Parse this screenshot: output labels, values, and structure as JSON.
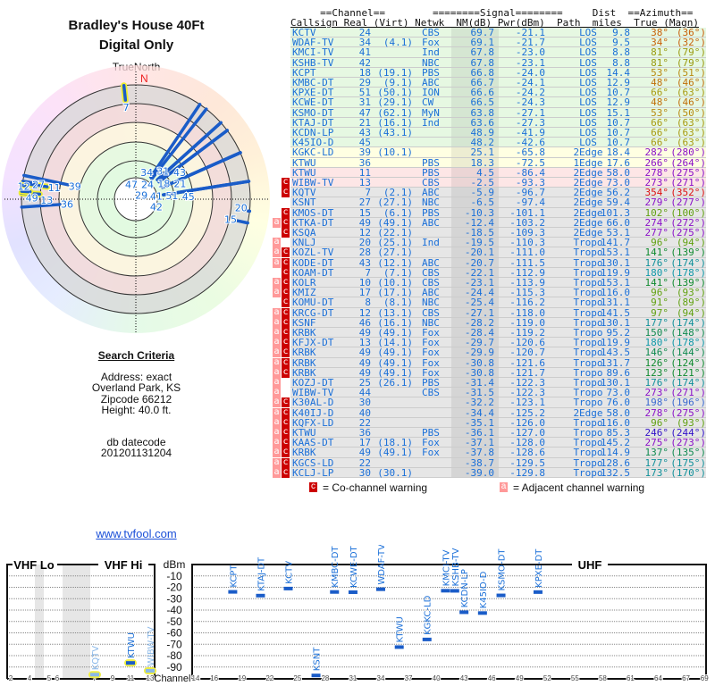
{
  "title_line1": "Bradley's House 40Ft",
  "title_line2": "Digital Only",
  "polar": {
    "north_label": "TrueNorth",
    "n": "N"
  },
  "criteria": {
    "heading": "Search Criteria",
    "address": "Address: exact",
    "city": "Overland Park, KS",
    "zip": "Zipcode 66212",
    "height": "Height: 40.0 ft.",
    "db_label": "db datecode",
    "db_value": "201201131204"
  },
  "link": "www.tvfool.com",
  "table": {
    "header1": "     ==Channel==        ========Signal========     Dist  ==Azimuth==",
    "header2": "Callsign Real (Virt) Netwk  NM(dB) Pwr(dBm)  Path  miles  True (Magn)",
    "rows": [
      {
        "w": "",
        "call": "KCTV",
        "real": "24",
        "virt": "",
        "net": "CBS",
        "nm": "69.7",
        "pwr": "-21.1",
        "path": "LOS",
        "dist": "9.8",
        "az": "38°",
        "mag": "(36°)",
        "color": "#c8600a",
        "hl": false
      },
      {
        "w": "",
        "call": "WDAF-TV",
        "real": "34",
        "virt": "(4.1)",
        "net": "Fox",
        "nm": "69.1",
        "pwr": "-21.7",
        "path": "LOS",
        "dist": "9.5",
        "az": "34°",
        "mag": "(32°)",
        "color": "#c8600a",
        "hl": false
      },
      {
        "w": "",
        "call": "KMCI-TV",
        "real": "41",
        "virt": "",
        "net": "Ind",
        "nm": "67.8",
        "pwr": "-23.0",
        "path": "LOS",
        "dist": "8.8",
        "az": "81°",
        "mag": "(79°)",
        "color": "#9a9a10",
        "hl": false
      },
      {
        "w": "",
        "call": "KSHB-TV",
        "real": "42",
        "virt": "",
        "net": "NBC",
        "nm": "67.8",
        "pwr": "-23.1",
        "path": "LOS",
        "dist": "8.8",
        "az": "81°",
        "mag": "(79°)",
        "color": "#9a9a10",
        "hl": false
      },
      {
        "w": "",
        "call": "KCPT",
        "real": "18",
        "virt": "(19.1)",
        "net": "PBS",
        "nm": "66.8",
        "pwr": "-24.0",
        "path": "LOS",
        "dist": "14.4",
        "az": "53°",
        "mag": "(51°)",
        "color": "#b88a10",
        "hl": false
      },
      {
        "w": "",
        "call": "KMBC-DT",
        "real": "29",
        "virt": "(9.1)",
        "net": "ABC",
        "nm": "66.7",
        "pwr": "-24.1",
        "path": "LOS",
        "dist": "12.9",
        "az": "48°",
        "mag": "(46°)",
        "color": "#c0700a",
        "hl": false
      },
      {
        "w": "",
        "call": "KPXE-DT",
        "real": "51",
        "virt": "(50.1)",
        "net": "ION",
        "nm": "66.6",
        "pwr": "-24.2",
        "path": "LOS",
        "dist": "10.7",
        "az": "66°",
        "mag": "(63°)",
        "color": "#a89a10",
        "hl": false
      },
      {
        "w": "",
        "call": "KCWE-DT",
        "real": "31",
        "virt": "(29.1)",
        "net": "CW",
        "nm": "66.5",
        "pwr": "-24.3",
        "path": "LOS",
        "dist": "12.9",
        "az": "48°",
        "mag": "(46°)",
        "color": "#c0700a",
        "hl": false
      },
      {
        "w": "",
        "call": "KSMO-DT",
        "real": "47",
        "virt": "(62.1)",
        "net": "MyN",
        "nm": "63.8",
        "pwr": "-27.1",
        "path": "LOS",
        "dist": "15.1",
        "az": "53°",
        "mag": "(50°)",
        "color": "#b88a10",
        "hl": false
      },
      {
        "w": "",
        "call": "KTAJ-DT",
        "real": "21",
        "virt": "(16.1)",
        "net": "Ind",
        "nm": "63.6",
        "pwr": "-27.3",
        "path": "LOS",
        "dist": "10.7",
        "az": "66°",
        "mag": "(63°)",
        "color": "#a89a10",
        "hl": false
      },
      {
        "w": "",
        "call": "KCDN-LP",
        "real": "43",
        "virt": "(43.1)",
        "net": "",
        "nm": "48.9",
        "pwr": "-41.9",
        "path": "LOS",
        "dist": "10.7",
        "az": "66°",
        "mag": "(63°)",
        "color": "#a89a10",
        "hl": false
      },
      {
        "w": "",
        "call": "K45IO-D",
        "real": "45",
        "virt": "",
        "net": "",
        "nm": "48.2",
        "pwr": "-42.6",
        "path": "LOS",
        "dist": "10.7",
        "az": "66°",
        "mag": "(63°)",
        "color": "#a89a10",
        "hl": false
      },
      {
        "w": "",
        "call": "KGKC-LD",
        "real": "39",
        "virt": "(10.1)",
        "net": "",
        "nm": "25.1",
        "pwr": "-65.8",
        "path": "2Edge",
        "dist": "18.4",
        "az": "282°",
        "mag": "(280°)",
        "color": "#8a10c8",
        "hl": false,
        "bg": "1Edge"
      },
      {
        "w": "",
        "call": "KTWU",
        "real": "36",
        "virt": "",
        "net": "PBS",
        "nm": "18.3",
        "pwr": "-72.5",
        "path": "1Edge",
        "dist": "17.6",
        "az": "266°",
        "mag": "(264°)",
        "color": "#8a10c8",
        "hl": false
      },
      {
        "w": "",
        "call": "KTWU",
        "real": "11",
        "virt": "",
        "net": "PBS",
        "nm": "4.5",
        "pwr": "-86.4",
        "path": "2Edge",
        "dist": "58.0",
        "az": "278°",
        "mag": "(275°)",
        "color": "#8a10c8",
        "hl": true
      },
      {
        "w": "c",
        "call": "WIBW-TV",
        "real": "13",
        "virt": "",
        "net": "CBS",
        "nm": "-2.5",
        "pwr": "-93.3",
        "path": "2Edge",
        "dist": "73.0",
        "az": "273°",
        "mag": "(271°)",
        "color": "#8a10c8",
        "hl": true
      },
      {
        "w": "c",
        "call": "KQTV",
        "real": "7",
        "virt": "(2.1)",
        "net": "ABC",
        "nm": "-5.9",
        "pwr": "-96.7",
        "path": "2Edge",
        "dist": "56.2",
        "az": "354°",
        "mag": "(352°)",
        "color": "#dd1010",
        "hl": true,
        "bg": "gray"
      },
      {
        "w": "",
        "call": "KSNT",
        "real": "27",
        "virt": "(27.1)",
        "net": "NBC",
        "nm": "-6.5",
        "pwr": "-97.4",
        "path": "2Edge",
        "dist": "59.4",
        "az": "279°",
        "mag": "(277°)",
        "color": "#8a10c8",
        "hl": false,
        "bg": "gray"
      },
      {
        "w": "c",
        "call": "KMOS-DT",
        "real": "15",
        "virt": "(6.1)",
        "net": "PBS",
        "nm": "-10.3",
        "pwr": "-101.1",
        "path": "2Edge",
        "dist": "101.3",
        "az": "102°",
        "mag": "(100°)",
        "color": "#60a010",
        "hl": false,
        "bg": "gray"
      },
      {
        "w": "ac",
        "call": "KTKA-DT",
        "real": "49",
        "virt": "(49.1)",
        "net": "ABC",
        "nm": "-12.4",
        "pwr": "-103.2",
        "path": "2Edge",
        "dist": "66.0",
        "az": "274°",
        "mag": "(272°)",
        "color": "#8a10c8",
        "hl": true,
        "bg": "gray"
      },
      {
        "w": "c",
        "call": "KSQA",
        "real": "12",
        "virt": "(22.1)",
        "net": "",
        "nm": "-18.5",
        "pwr": "-109.3",
        "path": "2Edge",
        "dist": "53.1",
        "az": "277°",
        "mag": "(275°)",
        "color": "#8a10c8",
        "hl": true,
        "bg": "gray"
      },
      {
        "w": "a",
        "call": "KNLJ",
        "real": "20",
        "virt": "(25.1)",
        "net": "Ind",
        "nm": "-19.5",
        "pwr": "-110.3",
        "path": "Tropo",
        "dist": "141.7",
        "az": "96°",
        "mag": "(94°)",
        "color": "#60a010",
        "hl": false
      },
      {
        "w": "ac",
        "call": "KOZL-TV",
        "real": "28",
        "virt": "(27.1)",
        "net": "",
        "nm": "-20.1",
        "pwr": "-111.0",
        "path": "Tropo",
        "dist": "153.1",
        "az": "141°",
        "mag": "(139°)",
        "color": "#108a30",
        "hl": false
      },
      {
        "w": "ac",
        "call": "KODE-DT",
        "real": "43",
        "virt": "(12.1)",
        "net": "ABC",
        "nm": "-20.7",
        "pwr": "-111.5",
        "path": "Tropo",
        "dist": "130.1",
        "az": "176°",
        "mag": "(174°)",
        "color": "#10909a",
        "hl": false
      },
      {
        "w": "c",
        "call": "KOAM-DT",
        "real": "7",
        "virt": "(7.1)",
        "net": "CBS",
        "nm": "-22.1",
        "pwr": "-112.9",
        "path": "Tropo",
        "dist": "119.9",
        "az": "180°",
        "mag": "(178°)",
        "color": "#1098a8",
        "hl": false
      },
      {
        "w": "ac",
        "call": "KOLR",
        "real": "10",
        "virt": "(10.1)",
        "net": "CBS",
        "nm": "-23.1",
        "pwr": "-113.9",
        "path": "Tropo",
        "dist": "153.1",
        "az": "141°",
        "mag": "(139°)",
        "color": "#108a30",
        "hl": false
      },
      {
        "w": "ac",
        "call": "KMIZ",
        "real": "17",
        "virt": "(17.1)",
        "net": "ABC",
        "nm": "-24.4",
        "pwr": "-115.3",
        "path": "Tropo",
        "dist": "116.0",
        "az": "96°",
        "mag": "(93°)",
        "color": "#60a010",
        "hl": false
      },
      {
        "w": "c",
        "call": "KOMU-DT",
        "real": "8",
        "virt": "(8.1)",
        "net": "NBC",
        "nm": "-25.4",
        "pwr": "-116.2",
        "path": "Tropo",
        "dist": "131.1",
        "az": "91°",
        "mag": "(89°)",
        "color": "#60a010",
        "hl": false
      },
      {
        "w": "ac",
        "call": "KRCG-DT",
        "real": "12",
        "virt": "(13.1)",
        "net": "CBS",
        "nm": "-27.1",
        "pwr": "-118.0",
        "path": "Tropo",
        "dist": "141.5",
        "az": "97°",
        "mag": "(94°)",
        "color": "#60a010",
        "hl": false
      },
      {
        "w": "ac",
        "call": "KSNF",
        "real": "46",
        "virt": "(16.1)",
        "net": "NBC",
        "nm": "-28.2",
        "pwr": "-119.0",
        "path": "Tropo",
        "dist": "130.1",
        "az": "177°",
        "mag": "(174°)",
        "color": "#10909a",
        "hl": false
      },
      {
        "w": "ac",
        "call": "KRBK",
        "real": "49",
        "virt": "(49.1)",
        "net": "Fox",
        "nm": "-28.4",
        "pwr": "-119.2",
        "path": "Tropo",
        "dist": "95.2",
        "az": "150°",
        "mag": "(148°)",
        "color": "#108a50",
        "hl": false
      },
      {
        "w": "ac",
        "call": "KFJX-DT",
        "real": "13",
        "virt": "(14.1)",
        "net": "Fox",
        "nm": "-29.7",
        "pwr": "-120.6",
        "path": "Tropo",
        "dist": "119.9",
        "az": "180°",
        "mag": "(178°)",
        "color": "#1098a8",
        "hl": false
      },
      {
        "w": "ac",
        "call": "KRBK",
        "real": "49",
        "virt": "(49.1)",
        "net": "Fox",
        "nm": "-29.9",
        "pwr": "-120.7",
        "path": "Tropo",
        "dist": "143.5",
        "az": "146°",
        "mag": "(144°)",
        "color": "#108a50",
        "hl": false
      },
      {
        "w": "ac",
        "call": "KRBK",
        "real": "49",
        "virt": "(49.1)",
        "net": "Fox",
        "nm": "-30.8",
        "pwr": "-121.6",
        "path": "Tropo",
        "dist": "131.7",
        "az": "126°",
        "mag": "(124°)",
        "color": "#108a30",
        "hl": false
      },
      {
        "w": "ac",
        "call": "KRBK",
        "real": "49",
        "virt": "(49.1)",
        "net": "Fox",
        "nm": "-30.8",
        "pwr": "-121.7",
        "path": "Tropo",
        "dist": "89.6",
        "az": "123°",
        "mag": "(121°)",
        "color": "#108a30",
        "hl": false
      },
      {
        "w": "a",
        "call": "KOZJ-DT",
        "real": "25",
        "virt": "(26.1)",
        "net": "PBS",
        "nm": "-31.4",
        "pwr": "-122.3",
        "path": "Tropo",
        "dist": "130.1",
        "az": "176°",
        "mag": "(174°)",
        "color": "#10909a",
        "hl": false
      },
      {
        "w": "a",
        "call": "WIBW-TV",
        "real": "44",
        "virt": "",
        "net": "CBS",
        "nm": "-31.5",
        "pwr": "-122.3",
        "path": "Tropo",
        "dist": "73.0",
        "az": "273°",
        "mag": "(271°)",
        "color": "#8a10c8",
        "hl": false
      },
      {
        "w": "ac",
        "call": "K30AL-D",
        "real": "30",
        "virt": "",
        "net": "",
        "nm": "-32.2",
        "pwr": "-123.1",
        "path": "Tropo",
        "dist": "76.0",
        "az": "198°",
        "mag": "(196°)",
        "color": "#3a6ad0",
        "hl": false
      },
      {
        "w": "ac",
        "call": "K40IJ-D",
        "real": "40",
        "virt": "",
        "net": "",
        "nm": "-34.4",
        "pwr": "-125.2",
        "path": "2Edge",
        "dist": "58.0",
        "az": "278°",
        "mag": "(275°)",
        "color": "#8a10c8",
        "hl": false,
        "bg": "gray"
      },
      {
        "w": "ac",
        "call": "KQFX-LD",
        "real": "22",
        "virt": "",
        "net": "",
        "nm": "-35.1",
        "pwr": "-126.0",
        "path": "Tropo",
        "dist": "116.0",
        "az": "96°",
        "mag": "(93°)",
        "color": "#60a010",
        "hl": false
      },
      {
        "w": "ac",
        "call": "KTWU",
        "real": "36",
        "virt": "",
        "net": "PBS",
        "nm": "-36.1",
        "pwr": "-127.0",
        "path": "Tropo",
        "dist": "85.3",
        "az": "246°",
        "mag": "(244°)",
        "color": "#3010c8",
        "hl": false
      },
      {
        "w": "ac",
        "call": "KAAS-DT",
        "real": "17",
        "virt": "(18.1)",
        "net": "Fox",
        "nm": "-37.1",
        "pwr": "-128.0",
        "path": "Tropo",
        "dist": "145.2",
        "az": "275°",
        "mag": "(273°)",
        "color": "#8a10c8",
        "hl": false
      },
      {
        "w": "ac",
        "call": "KRBK",
        "real": "49",
        "virt": "(49.1)",
        "net": "Fox",
        "nm": "-37.8",
        "pwr": "-128.6",
        "path": "Tropo",
        "dist": "114.9",
        "az": "137°",
        "mag": "(135°)",
        "color": "#108a50",
        "hl": false
      },
      {
        "w": "ac",
        "call": "KGCS-LD",
        "real": "22",
        "virt": "",
        "net": "",
        "nm": "-38.7",
        "pwr": "-129.5",
        "path": "Tropo",
        "dist": "128.6",
        "az": "177°",
        "mag": "(175°)",
        "color": "#10909a",
        "hl": false
      },
      {
        "w": "ac",
        "call": "KCLJ-LP",
        "real": "30",
        "virt": "(30.1)",
        "net": "",
        "nm": "-39.0",
        "pwr": "-129.8",
        "path": "Tropo",
        "dist": "132.5",
        "az": "173°",
        "mag": "(170°)",
        "color": "#10909a",
        "hl": false
      }
    ]
  },
  "legend": {
    "co_letter": "c",
    "co": "= Co-channel warning",
    "adj_letter": "a",
    "adj": "= Adjacent channel warning"
  },
  "spectrum": {
    "vhf_lo": "VHF Lo",
    "vhf_hi": "VHF Hi",
    "uhf": "UHF",
    "unit": "dBm",
    "channel_label": "Channel",
    "y_ticks": [
      "-10",
      "-20",
      "-30",
      "-40",
      "-50",
      "-60",
      "-70",
      "-80",
      "-90"
    ],
    "vhf_ticks": [
      "2",
      "4",
      "5",
      "6",
      "7",
      "9",
      "11",
      "13"
    ],
    "uhf_ticks": [
      "14",
      "16",
      "19",
      "22",
      "25",
      "28",
      "31",
      "34",
      "37",
      "40",
      "43",
      "46",
      "49",
      "52",
      "55",
      "58",
      "61",
      "64",
      "67",
      "69"
    ],
    "stations": [
      {
        "call": "KQTV",
        "ch": 7,
        "pwr": -96.7,
        "faded": true,
        "hl": true
      },
      {
        "call": "KTWU",
        "ch": 11,
        "pwr": -86.4,
        "faded": false,
        "hl": true
      },
      {
        "call": "WIBW-TV",
        "ch": 13,
        "pwr": -93.3,
        "faded": true,
        "hl": true
      },
      {
        "call": "KCPT",
        "ch": 18,
        "pwr": -24.0
      },
      {
        "call": "KTAJ-DT",
        "ch": 21,
        "pwr": -27.3
      },
      {
        "call": "KCTV",
        "ch": 24,
        "pwr": -21.1
      },
      {
        "call": "KSNT",
        "ch": 27,
        "pwr": -97.4
      },
      {
        "call": "KMBC-DT",
        "ch": 29,
        "pwr": -24.1
      },
      {
        "call": "KCWE-DT",
        "ch": 31,
        "pwr": -24.3
      },
      {
        "call": "WDAF-TV",
        "ch": 34,
        "pwr": -21.7
      },
      {
        "call": "KTWU",
        "ch": 36,
        "pwr": -72.5
      },
      {
        "call": "KGKC-LD",
        "ch": 39,
        "pwr": -65.8
      },
      {
        "call": "KMCI-TV",
        "ch": 41,
        "pwr": -23.0
      },
      {
        "call": "KSHB-TV",
        "ch": 42,
        "pwr": -23.1
      },
      {
        "call": "KCDN-LP",
        "ch": 43,
        "pwr": -41.9
      },
      {
        "call": "K45IO-D",
        "ch": 45,
        "pwr": -42.6
      },
      {
        "call": "KSMO-DT",
        "ch": 47,
        "pwr": -27.1
      },
      {
        "call": "KPXE-DT",
        "ch": 51,
        "pwr": -24.2
      }
    ]
  }
}
